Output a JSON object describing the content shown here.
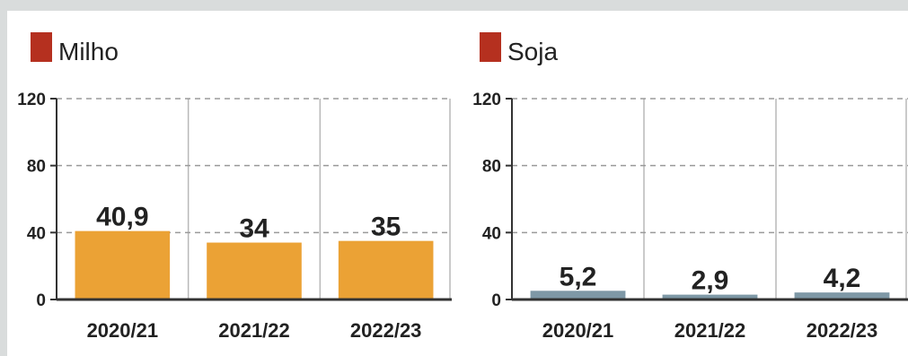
{
  "chart_data": [
    {
      "type": "bar",
      "title": "Milho",
      "title_marker_color": "#b5301f",
      "bar_color": "#eba235",
      "categories": [
        "2020/21",
        "2021/22",
        "2022/23"
      ],
      "values": [
        40.9,
        34,
        35
      ],
      "value_labels": [
        "40,9",
        "34",
        "35"
      ],
      "ylim": [
        0,
        120
      ],
      "yticks": [
        0,
        40,
        80,
        120
      ],
      "grid": true
    },
    {
      "type": "bar",
      "title": "Soja",
      "title_marker_color": "#b5301f",
      "bar_color": "#7e98a6",
      "categories": [
        "2020/21",
        "2021/22",
        "2022/23"
      ],
      "values": [
        5.2,
        2.9,
        4.2
      ],
      "value_labels": [
        "5,2",
        "2,9",
        "4,2"
      ],
      "ylim": [
        0,
        120
      ],
      "yticks": [
        0,
        40,
        80,
        120
      ],
      "grid": true
    }
  ]
}
